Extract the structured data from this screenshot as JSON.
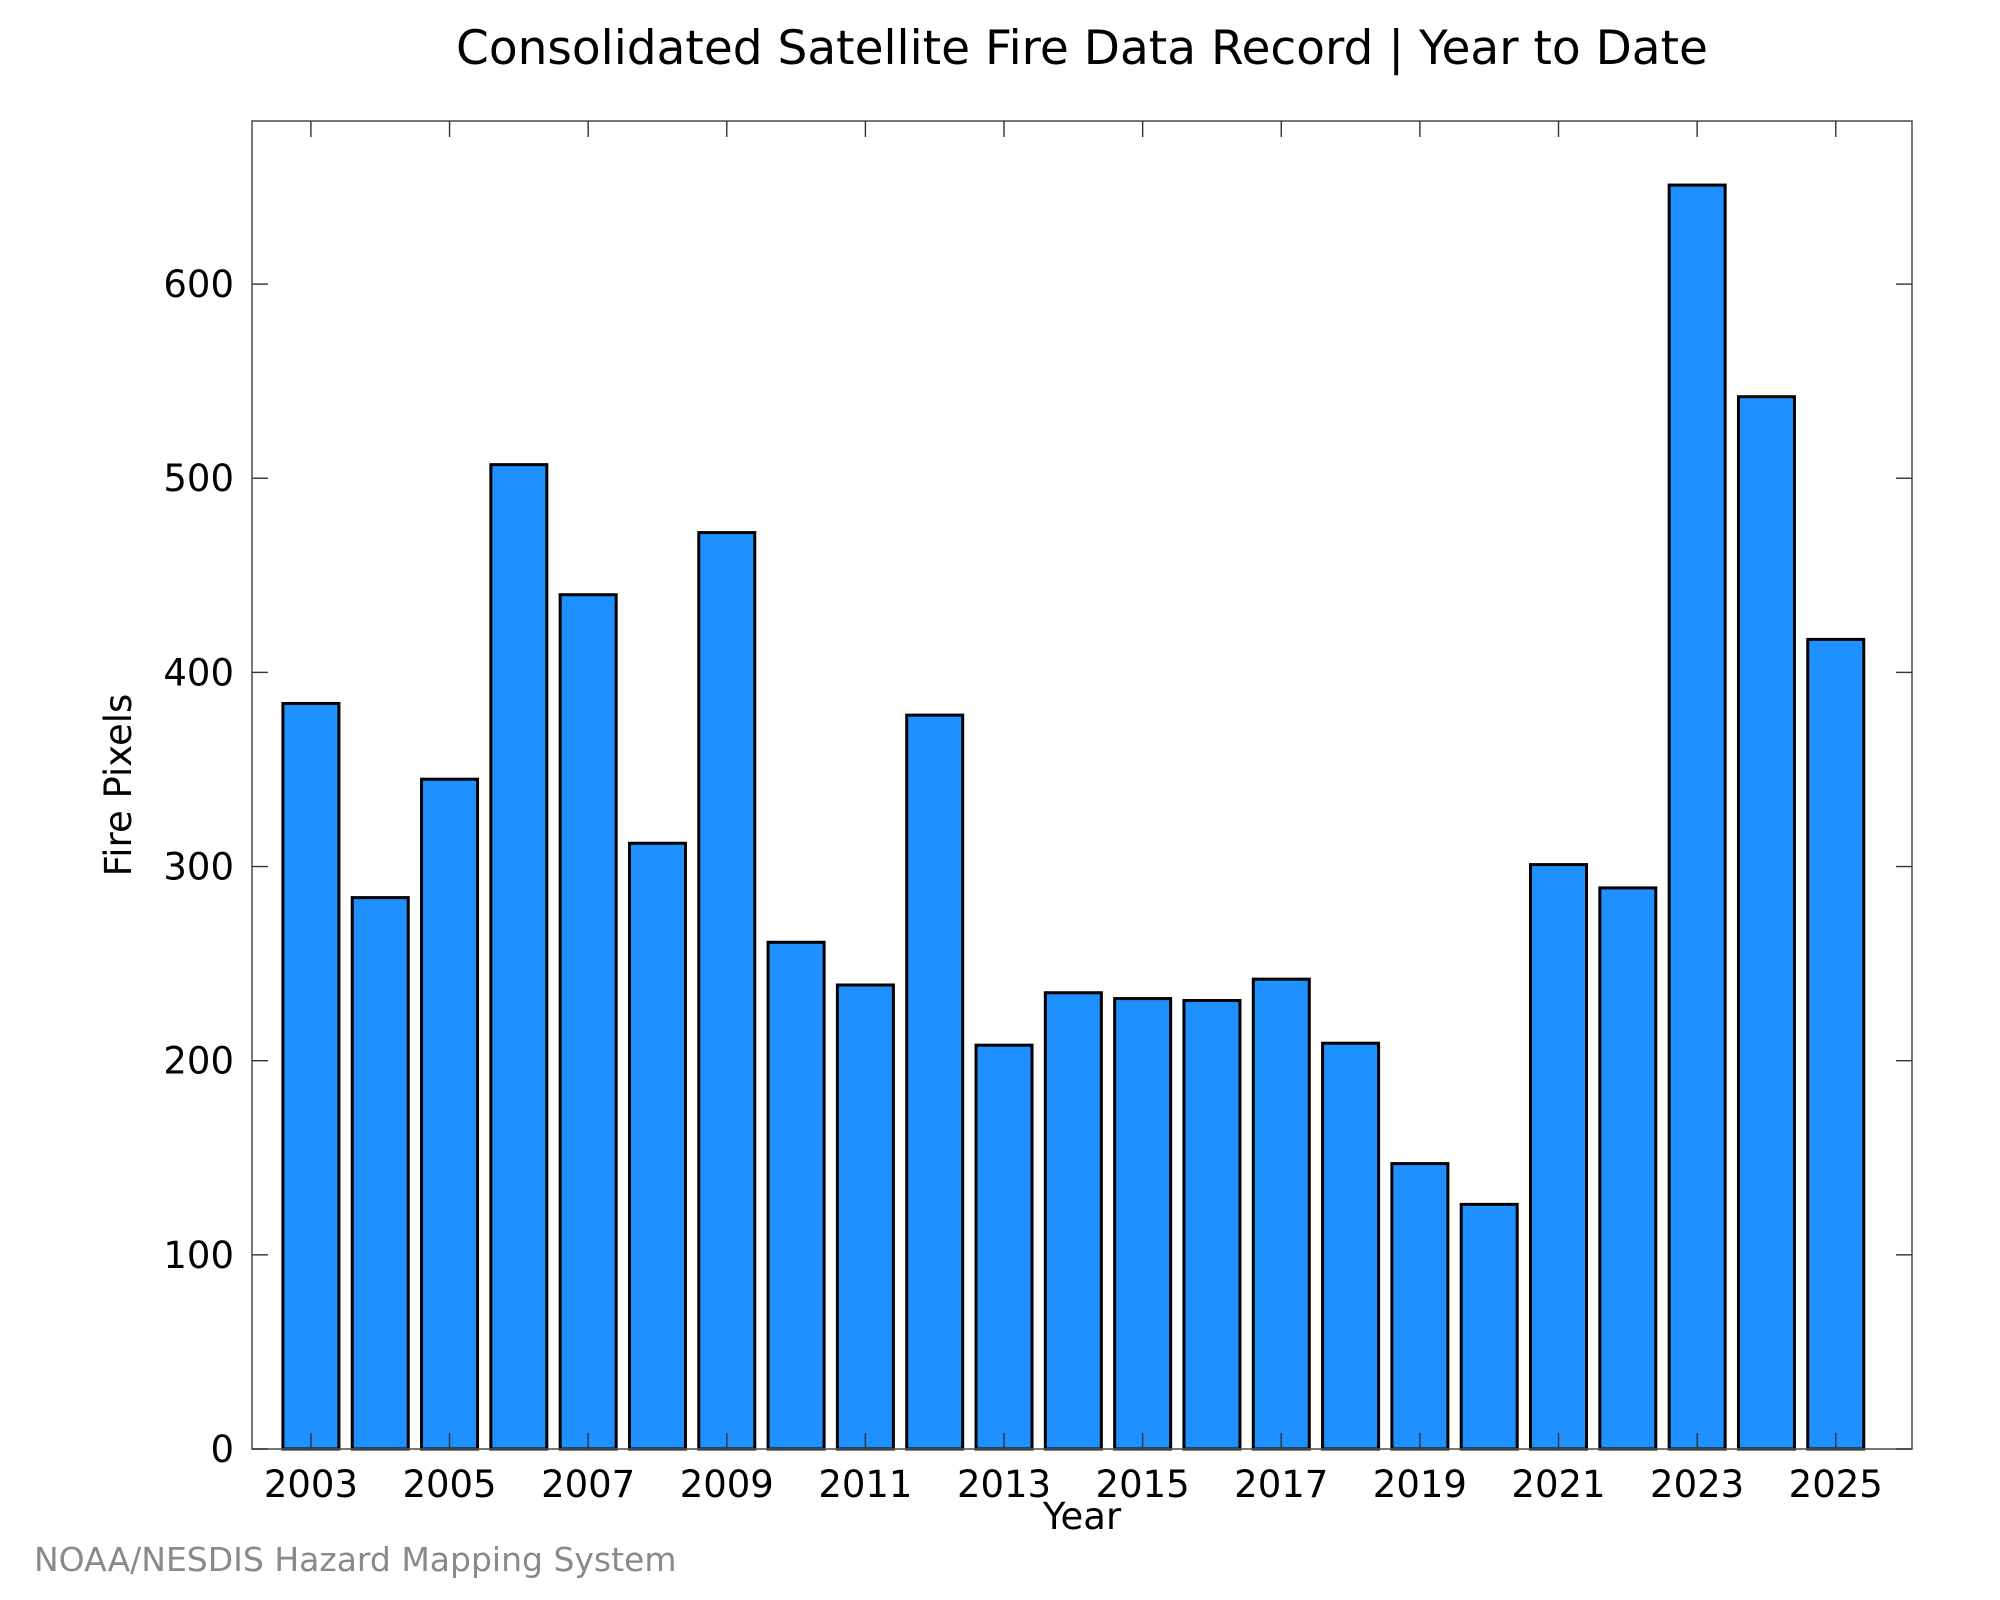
{
  "chart_data": {
    "type": "bar",
    "title": "Consolidated Satellite Fire Data Record | Year to Date",
    "xlabel": "Year",
    "ylabel": "Fire Pixels",
    "categories": [
      2003,
      2004,
      2005,
      2006,
      2007,
      2008,
      2009,
      2010,
      2011,
      2012,
      2013,
      2014,
      2015,
      2016,
      2017,
      2018,
      2019,
      2020,
      2021,
      2022,
      2023,
      2024,
      2025
    ],
    "values": [
      384,
      284,
      345,
      507,
      440,
      312,
      472,
      261,
      239,
      378,
      208,
      235,
      232,
      231,
      242,
      209,
      147,
      126,
      301,
      289,
      651,
      542,
      417
    ],
    "x_tick_labels": [
      "2003",
      "2005",
      "2007",
      "2009",
      "2011",
      "2013",
      "2015",
      "2017",
      "2019",
      "2021",
      "2023",
      "2025"
    ],
    "x_ticks": [
      2003,
      2005,
      2007,
      2009,
      2011,
      2013,
      2015,
      2017,
      2019,
      2021,
      2023,
      2025
    ],
    "y_tick_labels": [
      "0",
      "100",
      "200",
      "300",
      "400",
      "500",
      "600"
    ],
    "y_ticks": [
      0,
      100,
      200,
      300,
      400,
      500,
      600
    ],
    "xlim": [
      2002.15,
      2026.1
    ],
    "ylim": [
      0,
      684
    ],
    "grid": false,
    "legend": "none",
    "bar_color": "#1e90ff",
    "bar_edge_color": "#000000"
  },
  "credit": "NOAA/NESDIS Hazard Mapping System"
}
